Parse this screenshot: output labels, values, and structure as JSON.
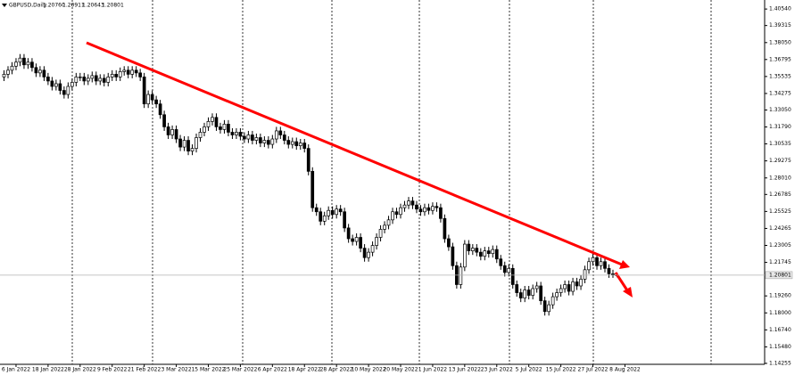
{
  "chart_data": {
    "type": "candlestick",
    "title": "GBPUSD,Daily",
    "header_ohlc": [
      "1.20760",
      "1.20911",
      "1.20643",
      "1.20801"
    ],
    "ylim": [
      1.14185,
      1.41209
    ],
    "yticks": [
      {
        "value": 1.4054,
        "label": "1.40540"
      },
      {
        "value": 1.39315,
        "label": "1.39315"
      },
      {
        "value": 1.3805,
        "label": "1.38050"
      },
      {
        "value": 1.36795,
        "label": "1.36795"
      },
      {
        "value": 1.35535,
        "label": "1.35535"
      },
      {
        "value": 1.34275,
        "label": "1.34275"
      },
      {
        "value": 1.3305,
        "label": "1.33050"
      },
      {
        "value": 1.3179,
        "label": "1.31790"
      },
      {
        "value": 1.30535,
        "label": "1.30535"
      },
      {
        "value": 1.29275,
        "label": "1.29275"
      },
      {
        "value": 1.2801,
        "label": "1.28010"
      },
      {
        "value": 1.26785,
        "label": "1.26785"
      },
      {
        "value": 1.25525,
        "label": "1.25525"
      },
      {
        "value": 1.24265,
        "label": "1.24265"
      },
      {
        "value": 1.23005,
        "label": "1.23005"
      },
      {
        "value": 1.21745,
        "label": "1.21745"
      },
      {
        "value": 1.1926,
        "label": "1.19260"
      },
      {
        "value": 1.18,
        "label": "1.18000"
      },
      {
        "value": 1.1674,
        "label": "1.16740"
      },
      {
        "value": 1.1548,
        "label": "1.15480"
      },
      {
        "value": 1.14255,
        "label": "1.14255"
      }
    ],
    "current_price": {
      "value": 1.20801,
      "label": "1.20801"
    },
    "xticks": [
      {
        "value": 3,
        "label": "6 Jan 2022"
      },
      {
        "value": 11,
        "label": "18 Jan 2022"
      },
      {
        "value": 19,
        "label": "28 Jan 2022"
      },
      {
        "value": 27,
        "label": "9 Feb 2022"
      },
      {
        "value": 35,
        "label": "21 Feb 2022"
      },
      {
        "value": 43,
        "label": "3 Mar 2022"
      },
      {
        "value": 51,
        "label": "15 Mar 2022"
      },
      {
        "value": 59,
        "label": "25 Mar 2022"
      },
      {
        "value": 67,
        "label": "6 Apr 2022"
      },
      {
        "value": 75,
        "label": "18 Apr 2022"
      },
      {
        "value": 83,
        "label": "28 Apr 2022"
      },
      {
        "value": 91,
        "label": "10 May 2022"
      },
      {
        "value": 99,
        "label": "20 May 2022"
      },
      {
        "value": 107,
        "label": "1 Jun 2022"
      },
      {
        "value": 115,
        "label": "13 Jun 2022"
      },
      {
        "value": 123,
        "label": "23 Jun 2022"
      },
      {
        "value": 131,
        "label": "5 Jul 2022"
      },
      {
        "value": 139,
        "label": "15 Jul 2022"
      },
      {
        "value": 147,
        "label": "27 Jul 2022"
      },
      {
        "value": 155,
        "label": "8 Aug 2022"
      }
    ],
    "open": [
      1.355,
      1.357,
      1.36,
      1.363,
      1.366,
      1.369,
      1.364,
      1.366,
      1.362,
      1.358,
      1.36,
      1.355,
      1.352,
      1.348,
      1.35,
      1.345,
      1.342,
      1.348,
      1.351,
      1.355,
      1.355,
      1.352,
      1.354,
      1.356,
      1.352,
      1.354,
      1.351,
      1.355,
      1.357,
      1.355,
      1.359,
      1.36,
      1.357,
      1.36,
      1.358,
      1.355,
      1.335,
      1.342,
      1.338,
      1.335,
      1.327,
      1.318,
      1.312,
      1.316,
      1.309,
      1.303,
      1.308,
      1.3,
      1.302,
      1.31,
      1.314,
      1.318,
      1.322,
      1.325,
      1.318,
      1.316,
      1.32,
      1.314,
      1.312,
      1.314,
      1.311,
      1.309,
      1.312,
      1.308,
      1.31,
      1.306,
      1.308,
      1.305,
      1.309,
      1.315,
      1.312,
      1.308,
      1.305,
      1.307,
      1.304,
      1.306,
      1.302,
      1.285,
      1.258,
      1.255,
      1.248,
      1.252,
      1.256,
      1.253,
      1.257,
      1.255,
      1.243,
      1.235,
      1.233,
      1.236,
      1.228,
      1.221,
      1.225,
      1.23,
      1.236,
      1.242,
      1.245,
      1.249,
      1.255,
      1.253,
      1.258,
      1.26,
      1.263,
      1.26,
      1.257,
      1.255,
      1.258,
      1.256,
      1.259,
      1.258,
      1.25,
      1.235,
      1.229,
      1.215,
      1.201,
      1.214,
      1.231,
      1.226,
      1.228,
      1.225,
      1.222,
      1.226,
      1.224,
      1.227,
      1.22,
      1.215,
      1.21,
      1.213,
      1.201,
      1.195,
      1.191,
      1.197,
      1.193,
      1.198,
      1.2,
      1.189,
      1.181,
      1.186,
      1.192,
      1.195,
      1.198,
      1.201,
      1.196,
      1.203,
      1.2,
      1.205,
      1.212,
      1.218,
      1.221,
      1.215,
      1.218,
      1.213,
      1.209,
      1.2076
    ],
    "high": [
      1.36,
      1.363,
      1.366,
      1.369,
      1.372,
      1.372,
      1.369,
      1.369,
      1.365,
      1.363,
      1.363,
      1.358,
      1.355,
      1.353,
      1.353,
      1.348,
      1.351,
      1.354,
      1.358,
      1.358,
      1.358,
      1.357,
      1.359,
      1.359,
      1.357,
      1.357,
      1.358,
      1.36,
      1.36,
      1.362,
      1.363,
      1.363,
      1.363,
      1.363,
      1.361,
      1.358,
      1.345,
      1.345,
      1.341,
      1.338,
      1.33,
      1.321,
      1.319,
      1.319,
      1.312,
      1.311,
      1.311,
      1.305,
      1.313,
      1.317,
      1.321,
      1.325,
      1.328,
      1.328,
      1.321,
      1.323,
      1.323,
      1.317,
      1.317,
      1.317,
      1.314,
      1.315,
      1.315,
      1.313,
      1.313,
      1.311,
      1.311,
      1.312,
      1.318,
      1.318,
      1.315,
      1.311,
      1.31,
      1.31,
      1.309,
      1.309,
      1.305,
      1.288,
      1.261,
      1.258,
      1.255,
      1.259,
      1.259,
      1.26,
      1.26,
      1.258,
      1.246,
      1.238,
      1.239,
      1.239,
      1.231,
      1.228,
      1.233,
      1.239,
      1.245,
      1.248,
      1.252,
      1.258,
      1.258,
      1.261,
      1.263,
      1.266,
      1.266,
      1.263,
      1.26,
      1.261,
      1.261,
      1.262,
      1.262,
      1.261,
      1.253,
      1.238,
      1.232,
      1.218,
      1.217,
      1.234,
      1.234,
      1.231,
      1.231,
      1.228,
      1.229,
      1.229,
      1.23,
      1.23,
      1.223,
      1.218,
      1.216,
      1.216,
      1.204,
      1.198,
      1.2,
      1.2,
      1.201,
      1.203,
      1.203,
      1.192,
      1.189,
      1.195,
      1.198,
      1.201,
      1.204,
      1.204,
      1.206,
      1.206,
      1.208,
      1.215,
      1.221,
      1.224,
      1.224,
      1.221,
      1.221,
      1.216,
      1.212,
      1.20911
    ],
    "low": [
      1.352,
      1.354,
      1.357,
      1.36,
      1.363,
      1.361,
      1.361,
      1.359,
      1.355,
      1.355,
      1.352,
      1.349,
      1.345,
      1.345,
      1.342,
      1.339,
      1.339,
      1.345,
      1.348,
      1.352,
      1.349,
      1.349,
      1.351,
      1.349,
      1.349,
      1.348,
      1.348,
      1.352,
      1.352,
      1.352,
      1.356,
      1.354,
      1.354,
      1.355,
      1.352,
      1.332,
      1.332,
      1.335,
      1.332,
      1.324,
      1.315,
      1.309,
      1.309,
      1.306,
      1.3,
      1.3,
      1.297,
      1.297,
      1.299,
      1.307,
      1.311,
      1.315,
      1.319,
      1.315,
      1.313,
      1.313,
      1.311,
      1.309,
      1.309,
      1.308,
      1.306,
      1.306,
      1.305,
      1.305,
      1.303,
      1.303,
      1.302,
      1.302,
      1.306,
      1.309,
      1.305,
      1.302,
      1.302,
      1.301,
      1.301,
      1.299,
      1.282,
      1.255,
      1.252,
      1.245,
      1.245,
      1.249,
      1.25,
      1.25,
      1.252,
      1.24,
      1.232,
      1.23,
      1.23,
      1.225,
      1.218,
      1.218,
      1.222,
      1.227,
      1.233,
      1.239,
      1.242,
      1.246,
      1.25,
      1.25,
      1.255,
      1.257,
      1.257,
      1.254,
      1.252,
      1.252,
      1.253,
      1.253,
      1.255,
      1.247,
      1.232,
      1.226,
      1.212,
      1.198,
      1.198,
      1.211,
      1.223,
      1.223,
      1.222,
      1.219,
      1.219,
      1.221,
      1.221,
      1.217,
      1.212,
      1.207,
      1.207,
      1.198,
      1.192,
      1.188,
      1.188,
      1.19,
      1.19,
      1.195,
      1.186,
      1.178,
      1.178,
      1.183,
      1.189,
      1.192,
      1.195,
      1.193,
      1.193,
      1.197,
      1.197,
      1.202,
      1.209,
      1.215,
      1.212,
      1.212,
      1.21,
      1.206,
      1.206,
      1.20643
    ],
    "close": [
      1.357,
      1.36,
      1.363,
      1.366,
      1.369,
      1.364,
      1.366,
      1.362,
      1.358,
      1.36,
      1.355,
      1.352,
      1.348,
      1.35,
      1.345,
      1.342,
      1.348,
      1.351,
      1.355,
      1.355,
      1.352,
      1.354,
      1.356,
      1.352,
      1.354,
      1.351,
      1.355,
      1.357,
      1.355,
      1.359,
      1.36,
      1.357,
      1.36,
      1.358,
      1.355,
      1.335,
      1.342,
      1.338,
      1.335,
      1.327,
      1.318,
      1.312,
      1.316,
      1.309,
      1.303,
      1.308,
      1.3,
      1.302,
      1.31,
      1.314,
      1.318,
      1.322,
      1.325,
      1.318,
      1.316,
      1.32,
      1.314,
      1.312,
      1.314,
      1.311,
      1.309,
      1.312,
      1.308,
      1.31,
      1.306,
      1.308,
      1.305,
      1.309,
      1.315,
      1.312,
      1.308,
      1.305,
      1.307,
      1.304,
      1.306,
      1.302,
      1.285,
      1.258,
      1.255,
      1.248,
      1.252,
      1.256,
      1.253,
      1.257,
      1.255,
      1.243,
      1.235,
      1.233,
      1.236,
      1.228,
      1.221,
      1.225,
      1.23,
      1.236,
      1.242,
      1.245,
      1.249,
      1.255,
      1.253,
      1.258,
      1.26,
      1.263,
      1.26,
      1.257,
      1.255,
      1.258,
      1.256,
      1.259,
      1.258,
      1.25,
      1.235,
      1.229,
      1.215,
      1.201,
      1.214,
      1.231,
      1.226,
      1.228,
      1.225,
      1.222,
      1.226,
      1.224,
      1.227,
      1.22,
      1.215,
      1.21,
      1.213,
      1.201,
      1.195,
      1.191,
      1.197,
      1.193,
      1.198,
      1.2,
      1.189,
      1.181,
      1.186,
      1.192,
      1.195,
      1.198,
      1.201,
      1.196,
      1.203,
      1.2,
      1.205,
      1.212,
      1.218,
      1.221,
      1.215,
      1.218,
      1.213,
      1.209,
      1.209,
      1.20801
    ]
  }
}
